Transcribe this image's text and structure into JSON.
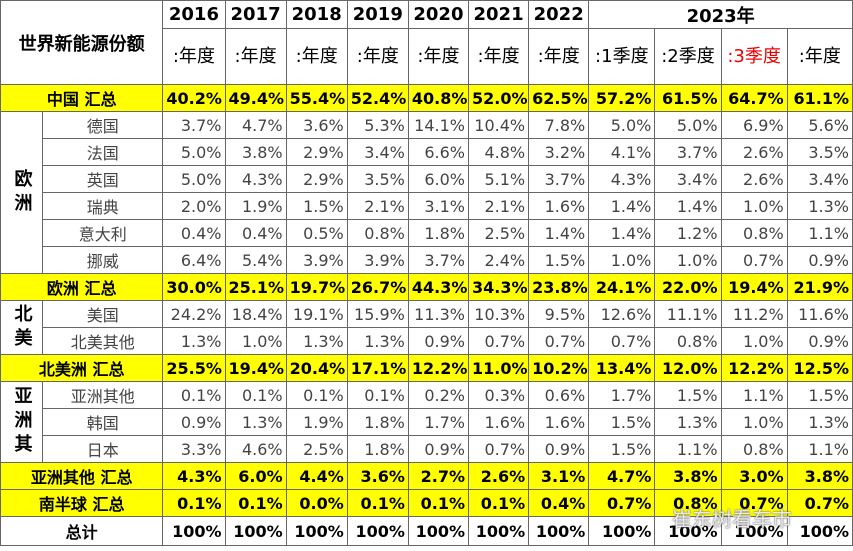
{
  "table": {
    "corner": "世界新能源份额",
    "years": [
      "2016",
      "2017",
      "2018",
      "2019",
      "2020",
      "2021",
      "2022",
      "2023年"
    ],
    "subheaders": [
      ":年度",
      ":年度",
      ":年度",
      ":年度",
      ":年度",
      ":年度",
      ":年度",
      ":1季度",
      ":2季度",
      ":3季度",
      ":年度"
    ],
    "rows": [
      {
        "label": "中国 汇总",
        "values": [
          "40.2%",
          "49.4%",
          "55.4%",
          "52.4%",
          "40.8%",
          "52.0%",
          "62.5%",
          "57.2%",
          "61.5%",
          "64.7%",
          "61.1%"
        ]
      },
      {
        "group": "欧洲",
        "rows": [
          {
            "label": "德国",
            "values": [
              "3.7%",
              "4.7%",
              "3.6%",
              "5.3%",
              "14.1%",
              "10.4%",
              "7.8%",
              "5.0%",
              "5.0%",
              "6.9%",
              "5.6%"
            ]
          },
          {
            "label": "法国",
            "values": [
              "5.0%",
              "3.8%",
              "2.9%",
              "3.4%",
              "6.6%",
              "4.8%",
              "3.2%",
              "4.1%",
              "3.7%",
              "2.6%",
              "3.5%"
            ]
          },
          {
            "label": "英国",
            "values": [
              "5.0%",
              "4.3%",
              "2.9%",
              "3.5%",
              "6.0%",
              "5.1%",
              "3.7%",
              "4.3%",
              "3.4%",
              "2.6%",
              "3.4%"
            ]
          },
          {
            "label": "瑞典",
            "values": [
              "2.0%",
              "1.9%",
              "1.5%",
              "2.1%",
              "3.1%",
              "2.1%",
              "1.6%",
              "1.4%",
              "1.4%",
              "1.0%",
              "1.3%"
            ]
          },
          {
            "label": "意大利",
            "values": [
              "0.4%",
              "0.4%",
              "0.5%",
              "0.8%",
              "1.8%",
              "2.5%",
              "1.4%",
              "1.4%",
              "1.2%",
              "0.8%",
              "1.1%"
            ]
          },
          {
            "label": "挪威",
            "values": [
              "6.4%",
              "5.4%",
              "3.9%",
              "3.9%",
              "3.7%",
              "2.4%",
              "1.5%",
              "1.0%",
              "1.0%",
              "0.7%",
              "0.9%"
            ]
          }
        ]
      },
      {
        "label": "欧洲 汇总",
        "values": [
          "30.0%",
          "25.1%",
          "19.7%",
          "26.7%",
          "44.3%",
          "34.3%",
          "23.8%",
          "24.1%",
          "22.0%",
          "19.4%",
          "21.9%"
        ]
      },
      {
        "group": "北美",
        "rows": [
          {
            "label": "美国",
            "values": [
              "24.2%",
              "18.4%",
              "19.1%",
              "15.9%",
              "11.3%",
              "10.3%",
              "9.5%",
              "12.6%",
              "11.1%",
              "11.2%",
              "11.6%"
            ]
          },
          {
            "label": "北美其他",
            "values": [
              "1.3%",
              "1.0%",
              "1.3%",
              "1.3%",
              "0.9%",
              "0.7%",
              "0.7%",
              "0.7%",
              "0.8%",
              "1.0%",
              "0.9%"
            ]
          }
        ]
      },
      {
        "label": "北美洲 汇总",
        "values": [
          "25.5%",
          "19.4%",
          "20.4%",
          "17.1%",
          "12.2%",
          "11.0%",
          "10.2%",
          "13.4%",
          "12.0%",
          "12.2%",
          "12.5%"
        ]
      },
      {
        "group": "亚洲其",
        "rows": [
          {
            "label": "亚洲其他",
            "values": [
              "0.1%",
              "0.1%",
              "0.1%",
              "0.1%",
              "0.2%",
              "0.3%",
              "0.6%",
              "1.7%",
              "1.5%",
              "1.1%",
              "1.5%"
            ]
          },
          {
            "label": "韩国",
            "values": [
              "0.9%",
              "1.3%",
              "1.9%",
              "1.8%",
              "1.7%",
              "1.6%",
              "1.6%",
              "1.5%",
              "1.3%",
              "1.0%",
              "1.3%"
            ]
          },
          {
            "label": "日本",
            "values": [
              "3.3%",
              "4.6%",
              "2.5%",
              "1.8%",
              "0.9%",
              "0.7%",
              "0.9%",
              "1.5%",
              "1.1%",
              "0.8%",
              "1.1%"
            ]
          }
        ]
      },
      {
        "label": "亚洲其他 汇总",
        "values": [
          "4.3%",
          "6.0%",
          "4.4%",
          "3.6%",
          "2.7%",
          "2.6%",
          "3.1%",
          "4.7%",
          "3.8%",
          "3.0%",
          "3.8%"
        ]
      },
      {
        "label": "南半球 汇总",
        "values": [
          "0.1%",
          "0.1%",
          "0.0%",
          "0.1%",
          "0.1%",
          "0.1%",
          "0.4%",
          "0.7%",
          "0.8%",
          "0.7%",
          "0.7%"
        ]
      },
      {
        "label": "总计",
        "values": [
          "100%",
          "100%",
          "100%",
          "100%",
          "100%",
          "100%",
          "100%",
          "100%",
          "100%",
          "100%",
          "100%"
        ]
      }
    ],
    "watermark": "崔东树看车市"
  }
}
